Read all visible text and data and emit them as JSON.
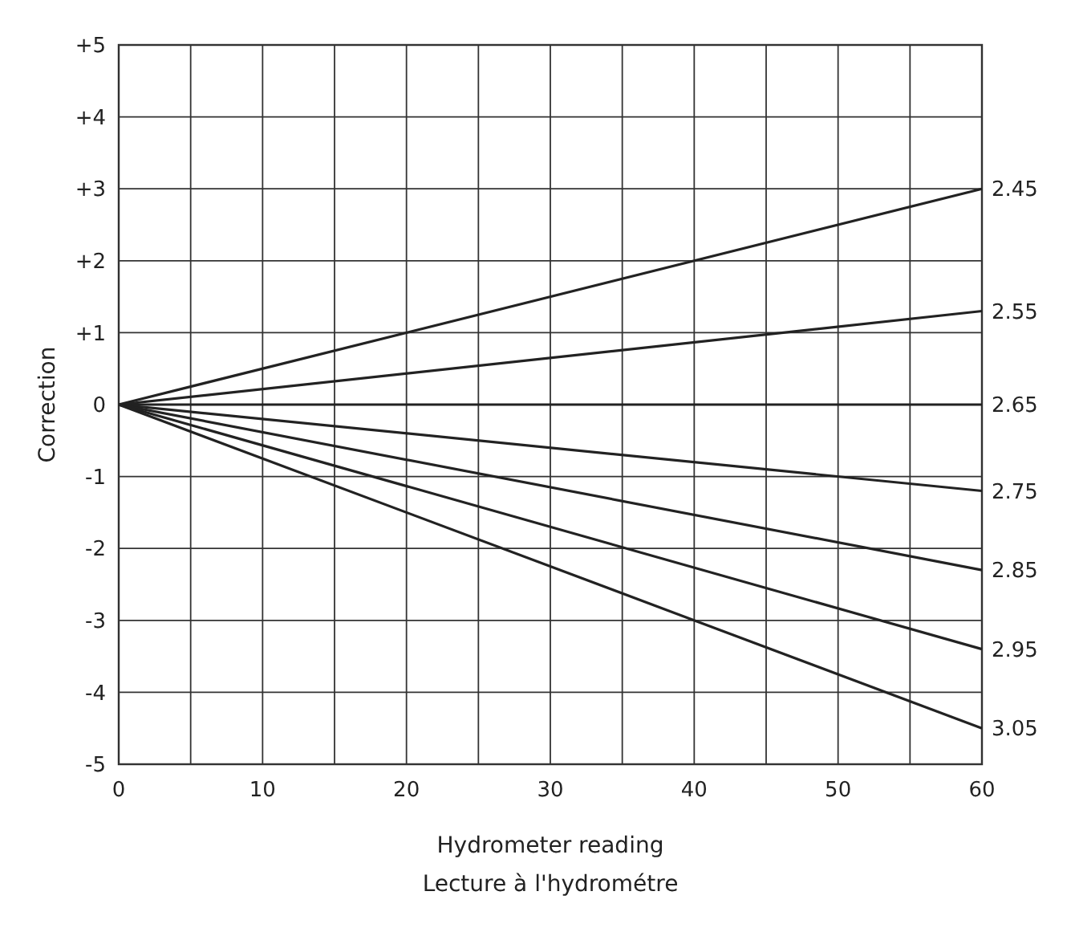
{
  "chart_data": {
    "type": "line",
    "xlabel": "Hydrometer reading\nLecture à l'hydrométre",
    "ylabel": "Correction",
    "xlim": [
      0,
      60
    ],
    "ylim": [
      -5,
      5
    ],
    "xticks": [
      0,
      {
        "value": 5,
        "label": null
      },
      10,
      {
        "value": 15,
        "label": null
      },
      20,
      {
        "value": 25,
        "label": null
      },
      30,
      {
        "value": 35,
        "label": null
      },
      40,
      {
        "value": 45,
        "label": null
      },
      50,
      {
        "value": 55,
        "label": null
      },
      60
    ],
    "yticks": [
      -5,
      -4,
      -3,
      -2,
      -1,
      0,
      {
        "value": 1,
        "label": "+1"
      },
      {
        "value": 2,
        "label": "+2"
      },
      {
        "value": 3,
        "label": "+3"
      },
      {
        "value": 4,
        "label": "+4"
      },
      {
        "value": 5,
        "label": "+5"
      }
    ],
    "grid": true,
    "marker": "none",
    "line_style": "solid",
    "x": [
      0,
      60
    ],
    "series": [
      {
        "name": "2.45",
        "color": "#222222",
        "values": [
          0,
          3.0
        ]
      },
      {
        "name": "2.55",
        "color": "#222222",
        "values": [
          0,
          1.3
        ]
      },
      {
        "name": "2.65",
        "color": "#222222",
        "values": [
          0,
          0
        ]
      },
      {
        "name": "2.75",
        "color": "#222222",
        "values": [
          0,
          -1.2
        ]
      },
      {
        "name": "2.85",
        "color": "#222222",
        "values": [
          0,
          -2.3
        ]
      },
      {
        "name": "2.95",
        "color": "#222222",
        "values": [
          0,
          -3.4
        ]
      },
      {
        "name": "3.05",
        "color": "#222222",
        "values": [
          0,
          -4.5
        ]
      }
    ]
  }
}
